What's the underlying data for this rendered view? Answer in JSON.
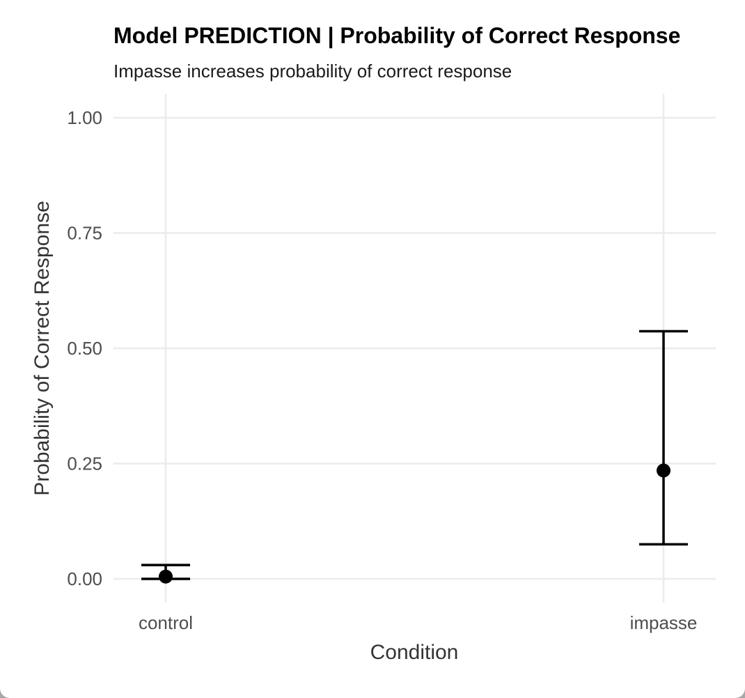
{
  "chart_data": {
    "type": "scatter",
    "title": "Model PREDICTION | Probability of Correct Response",
    "subtitle": "Impasse increases probability of correct response",
    "xlabel": "Condition",
    "ylabel": "Probability of Correct Response",
    "categories": [
      "control",
      "impasse"
    ],
    "points": [
      {
        "category": "control",
        "estimate": 0.005,
        "lower": 0.0,
        "upper": 0.03
      },
      {
        "category": "impasse",
        "estimate": 0.235,
        "lower": 0.075,
        "upper": 0.537
      }
    ],
    "ylim": [
      0,
      1
    ],
    "yticks": [
      0,
      0.25,
      0.5,
      0.75,
      1
    ],
    "ytick_labels": [
      "0.00",
      "0.25",
      "0.50",
      "0.75",
      "1.00"
    ],
    "grid": true,
    "legend": "none",
    "colors": {
      "marks": "#000000",
      "grid": "#ebebeb"
    }
  }
}
